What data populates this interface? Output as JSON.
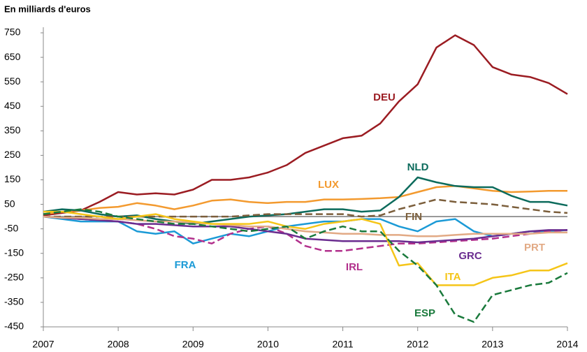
{
  "chart_data": {
    "type": "line",
    "ylabel": "En milliards d'euros",
    "x": [
      2007,
      2007.25,
      2007.5,
      2007.75,
      2008,
      2008.25,
      2008.5,
      2008.75,
      2009,
      2009.25,
      2009.5,
      2009.75,
      2010,
      2010.25,
      2010.5,
      2010.75,
      2011,
      2011.25,
      2011.5,
      2011.75,
      2012,
      2012.25,
      2012.5,
      2012.75,
      2013,
      2013.25,
      2013.5,
      2013.75,
      2014
    ],
    "xlim": [
      2007,
      2014
    ],
    "xticks": [
      2007,
      2008,
      2009,
      2010,
      2011,
      2012,
      2013,
      2014
    ],
    "ylim": [
      -450,
      750
    ],
    "yticks": [
      750,
      650,
      550,
      450,
      350,
      250,
      150,
      50,
      -50,
      -150,
      -250,
      -350,
      -450
    ],
    "series": [
      {
        "name": "DEU",
        "color": "#9b1c22",
        "dashed": false,
        "values": [
          5,
          15,
          25,
          60,
          100,
          90,
          95,
          90,
          110,
          150,
          150,
          160,
          180,
          210,
          260,
          290,
          320,
          330,
          380,
          470,
          540,
          690,
          740,
          700,
          610,
          580,
          570,
          545,
          500
        ]
      },
      {
        "name": "LUX",
        "color": "#f39a2f",
        "dashed": false,
        "values": [
          10,
          20,
          25,
          35,
          40,
          55,
          45,
          30,
          45,
          65,
          70,
          60,
          55,
          60,
          60,
          70,
          70,
          72,
          75,
          80,
          100,
          120,
          125,
          115,
          105,
          100,
          102,
          105,
          105
        ]
      },
      {
        "name": "NLD",
        "color": "#0c6b5c",
        "dashed": false,
        "values": [
          20,
          30,
          25,
          10,
          0,
          5,
          -10,
          -20,
          -30,
          -20,
          -10,
          0,
          5,
          10,
          20,
          30,
          30,
          20,
          25,
          80,
          160,
          140,
          125,
          120,
          120,
          85,
          60,
          60,
          45
        ]
      },
      {
        "name": "FIN",
        "color": "#7b5e3b",
        "dashed": true,
        "values": [
          0,
          0,
          0,
          0,
          0,
          0,
          0,
          0,
          0,
          0,
          0,
          5,
          10,
          10,
          10,
          10,
          10,
          0,
          5,
          30,
          50,
          70,
          60,
          55,
          50,
          40,
          30,
          20,
          15
        ]
      },
      {
        "name": "FRA",
        "color": "#1b9ad6",
        "dashed": false,
        "values": [
          0,
          -10,
          -20,
          -20,
          -20,
          -60,
          -70,
          -60,
          -110,
          -90,
          -70,
          -80,
          -60,
          -40,
          -30,
          -20,
          -20,
          -10,
          -10,
          -40,
          -60,
          -20,
          -10,
          -60,
          -80,
          -70,
          -60,
          -60,
          -55
        ]
      },
      {
        "name": "IRL",
        "color": "#b2308c",
        "dashed": true,
        "values": [
          0,
          -5,
          -10,
          -15,
          -20,
          -30,
          -50,
          -80,
          -90,
          -110,
          -70,
          -50,
          -40,
          -70,
          -120,
          -140,
          -140,
          -130,
          -120,
          -110,
          -110,
          -105,
          -100,
          -95,
          -90,
          -80,
          -70,
          -60,
          -55
        ]
      },
      {
        "name": "GRC",
        "color": "#6a2c8f",
        "dashed": false,
        "values": [
          0,
          -5,
          -10,
          -15,
          -20,
          -30,
          -30,
          -35,
          -40,
          -40,
          -40,
          -50,
          -60,
          -70,
          -90,
          -95,
          -100,
          -100,
          -100,
          -100,
          -105,
          -100,
          -95,
          -90,
          -80,
          -70,
          -60,
          -55,
          -55
        ]
      },
      {
        "name": "PRT",
        "color": "#e2aa85",
        "dashed": false,
        "values": [
          0,
          -5,
          -5,
          -10,
          -10,
          -15,
          -20,
          -20,
          -25,
          -30,
          -35,
          -40,
          -40,
          -50,
          -60,
          -65,
          -70,
          -70,
          -75,
          -75,
          -80,
          -80,
          -75,
          -70,
          -70,
          -70,
          -70,
          -65,
          -65
        ]
      },
      {
        "name": "ITA",
        "color": "#f5c518",
        "dashed": false,
        "values": [
          20,
          20,
          10,
          0,
          -10,
          0,
          10,
          -10,
          -20,
          -30,
          -30,
          -30,
          -20,
          -40,
          -50,
          -30,
          -20,
          -10,
          -30,
          -200,
          -190,
          -280,
          -280,
          -280,
          -250,
          -240,
          -220,
          -220,
          -190
        ]
      },
      {
        "name": "ESP",
        "color": "#1a7a3c",
        "dashed": true,
        "values": [
          10,
          20,
          30,
          20,
          0,
          -10,
          -20,
          -30,
          -30,
          -40,
          -50,
          -60,
          -50,
          -40,
          -90,
          -60,
          -40,
          -60,
          -60,
          -140,
          -200,
          -280,
          -400,
          -430,
          -320,
          -300,
          -280,
          -270,
          -230
        ]
      }
    ]
  }
}
